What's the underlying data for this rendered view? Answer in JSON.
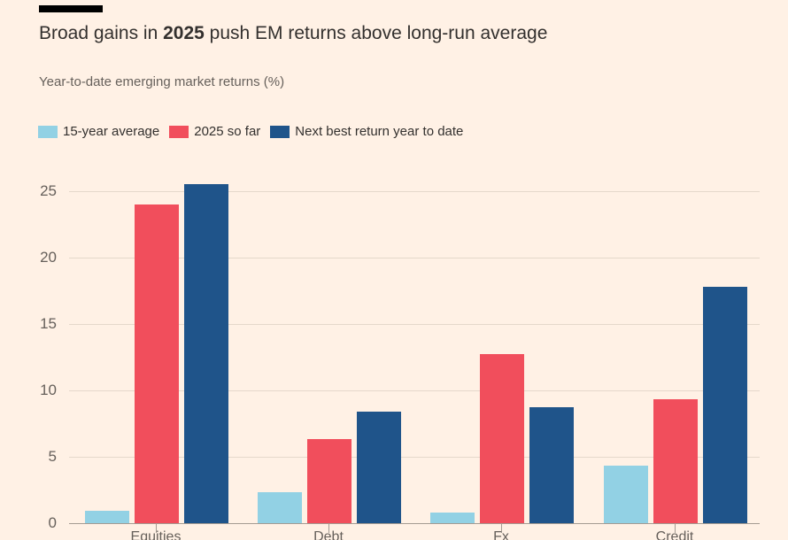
{
  "header": {
    "title_pre": "Broad gains in ",
    "title_accent": "2025",
    "title_post": " push EM returns above long-run average",
    "subtitle": "Year-to-date emerging market returns (%)"
  },
  "colors": {
    "background": "#FFF1E5",
    "title_text": "#33302E",
    "muted_text": "#66605B",
    "accent_red": "#F14E5C",
    "gridline": "#E5D8CB",
    "axis": "#A59C93",
    "top_rule": "#000000"
  },
  "chart_data": {
    "type": "bar",
    "title": "Broad gains in 2025 push EM returns above long-run average",
    "subtitle": "Year-to-date emerging market returns (%)",
    "categories": [
      "Equities",
      "Debt",
      "Fx",
      "Credit"
    ],
    "series": [
      {
        "name": "15-year average",
        "color": "#92D1E4",
        "values": [
          0.9,
          2.3,
          0.8,
          4.3
        ]
      },
      {
        "name": "2025 so far",
        "color": "#F14E5C",
        "values": [
          24.0,
          6.3,
          12.7,
          9.3
        ]
      },
      {
        "name": "Next best return year to date",
        "color": "#1F548A",
        "values": [
          25.5,
          8.4,
          8.7,
          17.8
        ]
      }
    ],
    "yticks": [
      0,
      5,
      10,
      15,
      20,
      25
    ],
    "ylim": [
      0,
      26
    ],
    "ylabel": "",
    "xlabel": "",
    "grid": "horizontal",
    "legend_position": "top-left"
  }
}
